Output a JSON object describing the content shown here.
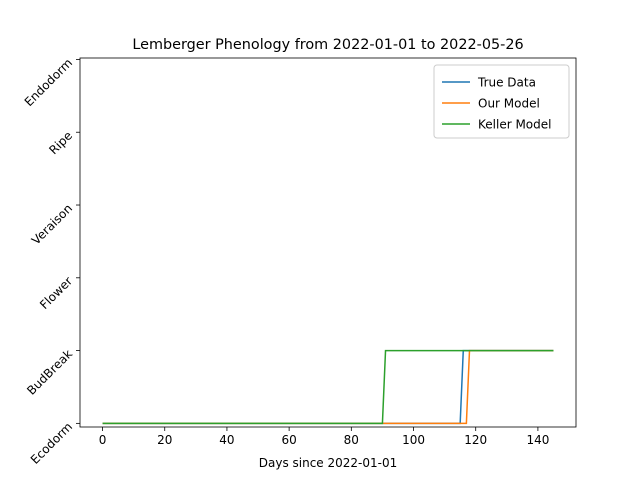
{
  "chart_data": {
    "type": "line",
    "title": "Lemberger Phenology from 2022-01-01 to 2022-05-26",
    "x_label": "Days since 2022-01-01",
    "series": [
      {
        "name": "True Data",
        "color": "#1f77b4",
        "x": [
          0,
          115,
          116,
          145
        ],
        "values": [
          0,
          0,
          1,
          1
        ]
      },
      {
        "name": "Our Model",
        "color": "#ff7f0e",
        "x": [
          0,
          117,
          118,
          145
        ],
        "values": [
          0,
          0,
          1,
          1
        ]
      },
      {
        "name": "Keller Model",
        "color": "#2ca02c",
        "x": [
          0,
          90,
          91,
          145
        ],
        "values": [
          0,
          0,
          1,
          1
        ]
      }
    ],
    "xlim": [
      -7.25,
      152.25
    ],
    "xticks": [
      0,
      20,
      40,
      60,
      80,
      100,
      120,
      140
    ],
    "ylim": [
      -0.05,
      5.02
    ],
    "yticks": [
      {
        "value": 0,
        "label": "Ecodorm"
      },
      {
        "value": 1,
        "label": "BudBreak"
      },
      {
        "value": 2,
        "label": "Flower"
      },
      {
        "value": 3,
        "label": "Veraison"
      },
      {
        "value": 4,
        "label": "Ripe"
      },
      {
        "value": 5,
        "label": "Endodorm"
      }
    ],
    "legend": "upper right"
  }
}
